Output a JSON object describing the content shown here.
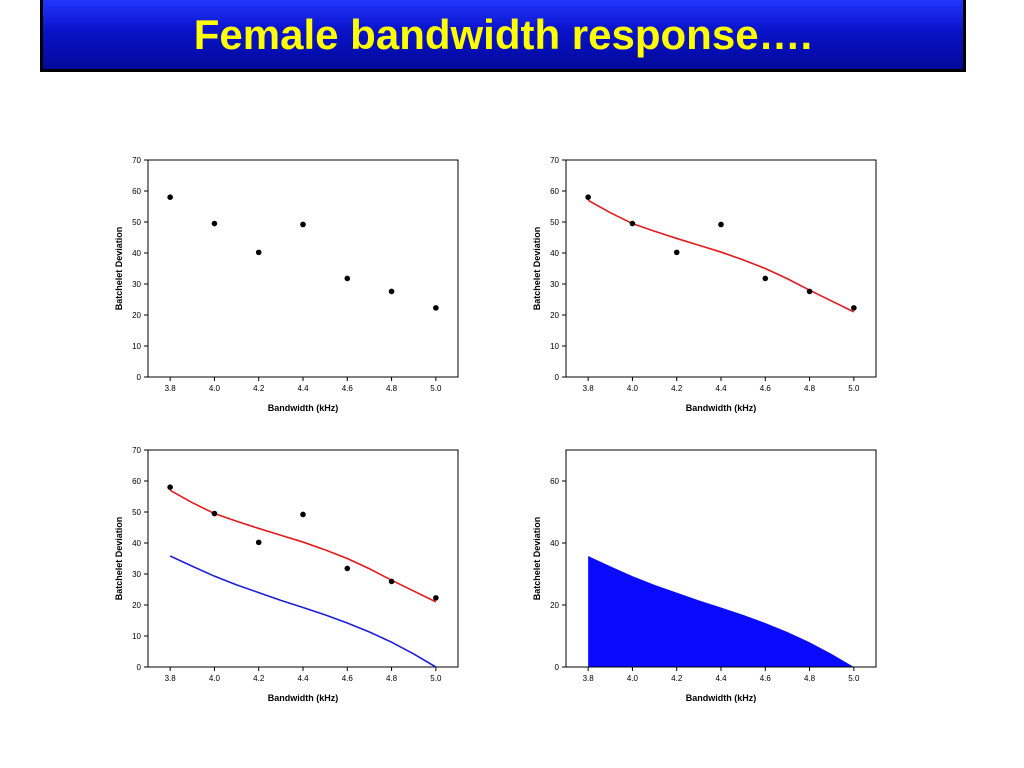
{
  "slide": {
    "title": "Female bandwidth response…."
  },
  "colors": {
    "fit_curve": "#e31a1c",
    "baseline_curve": "#1f1fd6",
    "area_fill": "#0a0aff",
    "points": "#000000"
  },
  "chart_data": [
    {
      "type": "scatter",
      "xlabel": "Bandwidth (kHz)",
      "ylabel": "Batchelet Deviation",
      "xlim": [
        3.7,
        5.1
      ],
      "ylim": [
        0,
        70
      ],
      "xticks": [
        "3.8",
        "4.0",
        "4.2",
        "4.4",
        "4.6",
        "4.8",
        "5.0"
      ],
      "yticks": [
        "0",
        "10",
        "20",
        "30",
        "40",
        "50",
        "60",
        "70"
      ],
      "grid": false,
      "series": [
        {
          "kind": "points",
          "color": "#000000",
          "points": [
            [
              3.8,
              58
            ],
            [
              4.0,
              49.5
            ],
            [
              4.2,
              40.2
            ],
            [
              4.4,
              49.2
            ],
            [
              4.6,
              31.8
            ],
            [
              4.8,
              27.6
            ],
            [
              5.0,
              22.3
            ]
          ]
        }
      ]
    },
    {
      "type": "scatter",
      "xlabel": "Bandwidth (kHz)",
      "ylabel": "Batchelet Deviation",
      "xlim": [
        3.7,
        5.1
      ],
      "ylim": [
        0,
        70
      ],
      "xticks": [
        "3.8",
        "4.0",
        "4.2",
        "4.4",
        "4.6",
        "4.8",
        "5.0"
      ],
      "yticks": [
        "0",
        "10",
        "20",
        "30",
        "40",
        "50",
        "60",
        "70"
      ],
      "grid": false,
      "series": [
        {
          "kind": "line",
          "color": "#e31a1c",
          "points": [
            [
              3.8,
              57
            ],
            [
              3.9,
              53
            ],
            [
              4.0,
              49.5
            ],
            [
              4.1,
              47
            ],
            [
              4.2,
              44.7
            ],
            [
              4.3,
              42.5
            ],
            [
              4.4,
              40.3
            ],
            [
              4.5,
              37.8
            ],
            [
              4.6,
              35
            ],
            [
              4.7,
              31.7
            ],
            [
              4.8,
              28
            ],
            [
              4.9,
              24.5
            ],
            [
              5.0,
              21
            ]
          ]
        },
        {
          "kind": "points",
          "color": "#000000",
          "points": [
            [
              3.8,
              58
            ],
            [
              4.0,
              49.5
            ],
            [
              4.2,
              40.2
            ],
            [
              4.4,
              49.2
            ],
            [
              4.6,
              31.8
            ],
            [
              4.8,
              27.6
            ],
            [
              5.0,
              22.3
            ]
          ]
        }
      ]
    },
    {
      "type": "scatter",
      "xlabel": "Bandwidth (kHz)",
      "ylabel": "Batchelet Deviation",
      "xlim": [
        3.7,
        5.1
      ],
      "ylim": [
        0,
        70
      ],
      "xticks": [
        "3.8",
        "4.0",
        "4.2",
        "4.4",
        "4.6",
        "4.8",
        "5.0"
      ],
      "yticks": [
        "0",
        "10",
        "20",
        "30",
        "40",
        "50",
        "60",
        "70"
      ],
      "grid": false,
      "series": [
        {
          "kind": "line",
          "color": "#e31a1c",
          "points": [
            [
              3.8,
              57
            ],
            [
              3.9,
              53
            ],
            [
              4.0,
              49.5
            ],
            [
              4.1,
              47
            ],
            [
              4.2,
              44.7
            ],
            [
              4.3,
              42.5
            ],
            [
              4.4,
              40.3
            ],
            [
              4.5,
              37.8
            ],
            [
              4.6,
              35
            ],
            [
              4.7,
              31.7
            ],
            [
              4.8,
              28
            ],
            [
              4.9,
              24.5
            ],
            [
              5.0,
              21
            ]
          ]
        },
        {
          "kind": "line",
          "color": "#1f1fd6",
          "points": [
            [
              3.8,
              35.8
            ],
            [
              3.9,
              32.5
            ],
            [
              4.0,
              29.3
            ],
            [
              4.1,
              26.5
            ],
            [
              4.2,
              24
            ],
            [
              4.3,
              21.5
            ],
            [
              4.4,
              19.2
            ],
            [
              4.5,
              16.8
            ],
            [
              4.6,
              14.2
            ],
            [
              4.7,
              11.3
            ],
            [
              4.8,
              8
            ],
            [
              4.9,
              4.2
            ],
            [
              5.0,
              0
            ]
          ]
        },
        {
          "kind": "points",
          "color": "#000000",
          "points": [
            [
              3.8,
              58
            ],
            [
              4.0,
              49.5
            ],
            [
              4.2,
              40.2
            ],
            [
              4.4,
              49.2
            ],
            [
              4.6,
              31.8
            ],
            [
              4.8,
              27.6
            ],
            [
              5.0,
              22.3
            ]
          ]
        }
      ]
    },
    {
      "type": "area",
      "xlabel": "Bandwidth (kHz)",
      "ylabel": "Batchelet Deviation",
      "xlim": [
        3.7,
        5.1
      ],
      "ylim": [
        0,
        70
      ],
      "xticks": [
        "3.8",
        "4.0",
        "4.2",
        "4.4",
        "4.6",
        "4.8",
        "5.0"
      ],
      "yticks": [
        "0",
        "20",
        "40",
        "60"
      ],
      "grid": false,
      "series": [
        {
          "kind": "area",
          "color": "#0a0aff",
          "points": [
            [
              3.8,
              35.8
            ],
            [
              3.9,
              32.5
            ],
            [
              4.0,
              29.3
            ],
            [
              4.1,
              26.5
            ],
            [
              4.2,
              24
            ],
            [
              4.3,
              21.5
            ],
            [
              4.4,
              19.2
            ],
            [
              4.5,
              16.8
            ],
            [
              4.6,
              14.2
            ],
            [
              4.7,
              11.3
            ],
            [
              4.8,
              8
            ],
            [
              4.9,
              4.2
            ],
            [
              5.0,
              0
            ]
          ]
        }
      ]
    }
  ]
}
